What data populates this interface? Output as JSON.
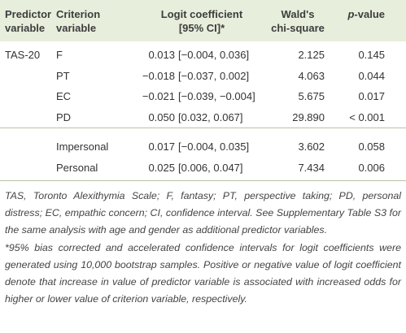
{
  "table": {
    "header": [
      "Predictor variable",
      "Criterion variable",
      "Logit coefficient [95% CI]*",
      "Wald's chi-square",
      "p-value"
    ],
    "groups": [
      {
        "predictor": "TAS-20",
        "rows": [
          {
            "criterion": "F",
            "coefficient": "0.013",
            "ci": "[−0.004, 0.036]",
            "wald": "2.125",
            "p": "0.145"
          },
          {
            "criterion": "PT",
            "coefficient": "−0.018",
            "ci": "[−0.037, 0.002]",
            "wald": "4.063",
            "p": "0.044"
          },
          {
            "criterion": "EC",
            "coefficient": "−0.021",
            "ci": "[−0.039, −0.004]",
            "wald": "5.675",
            "p": "0.017"
          },
          {
            "criterion": "PD",
            "coefficient": "0.050",
            "ci": "[0.032, 0.067]",
            "wald": "29.890",
            "p": "< 0.001"
          }
        ]
      },
      {
        "rows": [
          {
            "criterion": "Impersonal",
            "coefficient": "0.017",
            "ci": "[−0.004, 0.035]",
            "wald": "3.602",
            "p": "0.058"
          },
          {
            "criterion": "Personal",
            "coefficient": "0.025",
            "ci": "[0.006, 0.047]",
            "wald": "7.434",
            "p": "0.006"
          }
        ]
      }
    ],
    "footnotes": [
      "TAS, Toronto Alexithymia Scale; F, fantasy; PT, perspective taking; PD, personal distress; EC, empathic concern; CI, confidence interval. See Supplementary Table S3 for the same analysis with age and gender as additional predictor variables.",
      "*95% bias corrected and accelerated confidence intervals for logit coefficients were generated using 10,000 bootstrap samples. Positive or negative value of logit coefficient denote that increase in value of predictor variable is associated with increased odds for higher or lower value of criterion variable, respectively."
    ]
  }
}
